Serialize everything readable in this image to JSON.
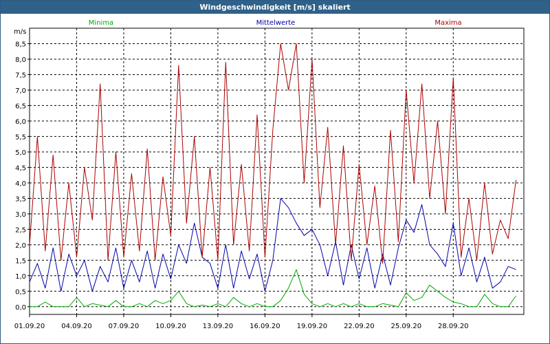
{
  "title": "Windgeschwindigkeit [m/s] skaliert",
  "colors": {
    "titlebar": "#2f6189",
    "minima": "#00aa00",
    "mittel": "#0000aa",
    "maxima": "#aa0000",
    "grid": "#000000"
  },
  "chart_data": {
    "type": "line",
    "title": "Windgeschwindigkeit [m/s] skaliert",
    "ylabel": "m/s",
    "xlabel": "",
    "ylim": [
      -0.25,
      9.0
    ],
    "xlim": [
      0,
      31.5
    ],
    "y_ticks": [
      "0,0",
      "0,5",
      "1,0",
      "1,5",
      "2,0",
      "2,5",
      "3,0",
      "3,5",
      "4,0",
      "4,5",
      "5,0",
      "5,5",
      "6,0",
      "6,5",
      "7,0",
      "7,5",
      "8,0",
      "8,5"
    ],
    "y_tick_values": [
      0.0,
      0.5,
      1.0,
      1.5,
      2.0,
      2.5,
      3.0,
      3.5,
      4.0,
      4.5,
      5.0,
      5.5,
      6.0,
      6.5,
      7.0,
      7.5,
      8.0,
      8.5
    ],
    "x_ticks": [
      "01.09.20",
      "04.09.20",
      "07.09.20",
      "10.09.20",
      "13.09.20",
      "16.09.20",
      "19.09.20",
      "22.09.20",
      "25.09.20",
      "28.09.20"
    ],
    "x_tick_values": [
      0,
      3,
      6,
      9,
      12,
      15,
      18,
      21,
      24,
      27
    ],
    "grid": true,
    "legend": [
      "Minima",
      "Mittelwerte",
      "Maxima"
    ],
    "series": [
      {
        "name": "Minima",
        "x": [
          0,
          0.5,
          1,
          1.5,
          2,
          2.5,
          3,
          3.5,
          4,
          4.5,
          5,
          5.5,
          6,
          6.5,
          7,
          7.5,
          8,
          8.5,
          9,
          9.5,
          10,
          10.5,
          11,
          11.5,
          12,
          12.5,
          13,
          13.5,
          14,
          14.5,
          15,
          15.5,
          16,
          16.5,
          17,
          17.5,
          18,
          18.5,
          19,
          19.5,
          20,
          20.5,
          21,
          21.5,
          22,
          22.5,
          23,
          23.5,
          24,
          24.5,
          25,
          25.5,
          26,
          26.5,
          27,
          27.5,
          28,
          28.5,
          29,
          29.5,
          30,
          30.5,
          31
        ],
        "values": [
          0,
          0,
          0.15,
          0,
          0,
          0,
          0.3,
          0,
          0.1,
          0.05,
          0,
          0.2,
          0,
          0,
          0.1,
          0,
          0.2,
          0.1,
          0.2,
          0.5,
          0.1,
          0,
          0.05,
          0,
          0.1,
          0,
          0.3,
          0.1,
          0,
          0.1,
          0,
          0,
          0.2,
          0.6,
          1.2,
          0.4,
          0.1,
          0,
          0.1,
          0,
          0.1,
          0,
          0.1,
          0,
          0,
          0.1,
          0.05,
          0,
          0.45,
          0.2,
          0.3,
          0.7,
          0.5,
          0.3,
          0.15,
          0.1,
          0,
          0,
          0.4,
          0.1,
          0,
          0,
          0.35
        ]
      },
      {
        "name": "Mittelwerte",
        "x": [
          0,
          0.5,
          1,
          1.5,
          2,
          2.5,
          3,
          3.5,
          4,
          4.5,
          5,
          5.5,
          6,
          6.5,
          7,
          7.5,
          8,
          8.5,
          9,
          9.5,
          10,
          10.5,
          11,
          11.5,
          12,
          12.5,
          13,
          13.5,
          14,
          14.5,
          15,
          15.5,
          16,
          16.5,
          17,
          17.5,
          18,
          18.5,
          19,
          19.5,
          20,
          20.5,
          21,
          21.5,
          22,
          22.5,
          23,
          23.5,
          24,
          24.5,
          25,
          25.5,
          26,
          26.5,
          27,
          27.5,
          28,
          28.5,
          29,
          29.5,
          30,
          30.5,
          31
        ],
        "values": [
          0.8,
          1.4,
          0.6,
          1.9,
          0.5,
          1.7,
          1.0,
          1.5,
          0.5,
          1.3,
          0.8,
          1.9,
          0.6,
          1.5,
          0.8,
          1.8,
          0.6,
          1.7,
          0.9,
          2.0,
          1.4,
          2.7,
          1.6,
          1.4,
          0.6,
          2.0,
          0.6,
          1.8,
          0.9,
          1.7,
          0.5,
          1.5,
          3.5,
          3.2,
          2.7,
          2.3,
          2.5,
          2.0,
          1.0,
          2.1,
          0.7,
          2.0,
          0.9,
          1.9,
          0.6,
          1.7,
          0.7,
          1.9,
          2.8,
          2.4,
          3.3,
          2.0,
          1.7,
          1.3,
          2.7,
          1.0,
          1.9,
          0.8,
          1.6,
          0.6,
          0.8,
          1.3,
          1.2
        ]
      },
      {
        "name": "Maxima",
        "x": [
          0,
          0.5,
          1,
          1.5,
          2,
          2.5,
          3,
          3.5,
          4,
          4.5,
          5,
          5.5,
          6,
          6.5,
          7,
          7.5,
          8,
          8.5,
          9,
          9.5,
          10,
          10.5,
          11,
          11.5,
          12,
          12.5,
          13,
          13.5,
          14,
          14.5,
          15,
          15.5,
          16,
          16.5,
          17,
          17.5,
          18,
          18.5,
          19,
          19.5,
          20,
          20.5,
          21,
          21.5,
          22,
          22.5,
          23,
          23.5,
          24,
          24.5,
          25,
          25.5,
          26,
          26.5,
          27,
          27.5,
          28,
          28.5,
          29,
          29.5,
          30,
          30.5,
          31
        ],
        "values": [
          2.0,
          5.5,
          1.8,
          4.9,
          1.5,
          4.0,
          1.6,
          4.5,
          2.8,
          7.2,
          1.5,
          5.0,
          1.6,
          4.3,
          1.8,
          5.1,
          1.5,
          4.2,
          2.3,
          7.8,
          2.7,
          5.5,
          1.6,
          4.5,
          1.5,
          7.9,
          2.0,
          4.6,
          1.8,
          6.2,
          1.6,
          5.7,
          8.5,
          7.0,
          8.5,
          4.0,
          8.0,
          3.2,
          5.8,
          2.0,
          5.2,
          1.5,
          4.6,
          2.0,
          3.9,
          1.4,
          5.7,
          2.1,
          7.0,
          4.0,
          7.2,
          3.5,
          6.0,
          3.0,
          7.4,
          1.6,
          3.5,
          1.5,
          4.0,
          1.7,
          2.8,
          2.2,
          4.1
        ]
      }
    ]
  }
}
